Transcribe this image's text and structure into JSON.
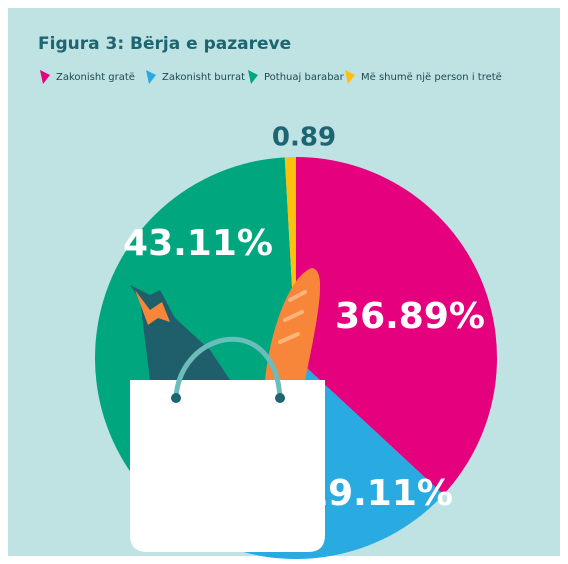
{
  "chart_data": {
    "type": "pie",
    "title": "Figura 3: Bërja e pazareve",
    "categories": [
      "Zakonisht gratë",
      "Zakonisht burrat",
      "Pothuaj barabar",
      "Më shumë një person i tretë"
    ],
    "values": [
      36.89,
      19.11,
      43.11,
      0.89
    ],
    "value_labels": [
      "36.89%",
      "19.11%",
      "43.11%",
      "0.89"
    ],
    "colors": [
      "#e5007e",
      "#29abe2",
      "#00a67e",
      "#fcc10f"
    ]
  }
}
